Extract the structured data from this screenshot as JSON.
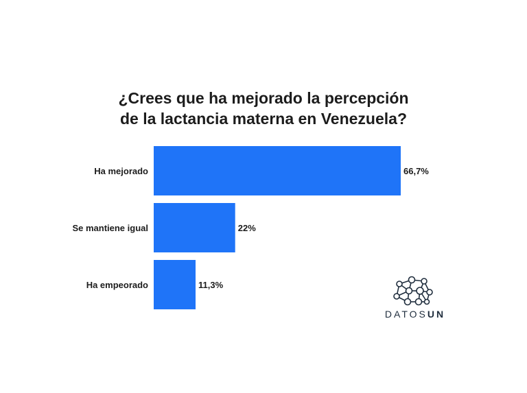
{
  "title_lines": [
    "¿Crees que ha mejorado la percepción",
    "de la lactancia materna en Venezuela?"
  ],
  "chart_data": {
    "type": "bar",
    "orientation": "horizontal",
    "title": "¿Crees que ha mejorado la percepción de la lactancia materna en Venezuela?",
    "categories": [
      "Ha mejorado",
      "Se mantiene igual",
      "Ha empeorado"
    ],
    "values": [
      66.7,
      22,
      11.3
    ],
    "value_labels": [
      "66,7%",
      "22%",
      "11,3%"
    ],
    "xlim": [
      0,
      66.7
    ],
    "grid": false,
    "bar_color": "#1f74f8"
  },
  "logo": {
    "text_light": "DATOS",
    "text_bold": "UN",
    "icon": "network-nodes-icon",
    "color": "#1f2d3d"
  }
}
